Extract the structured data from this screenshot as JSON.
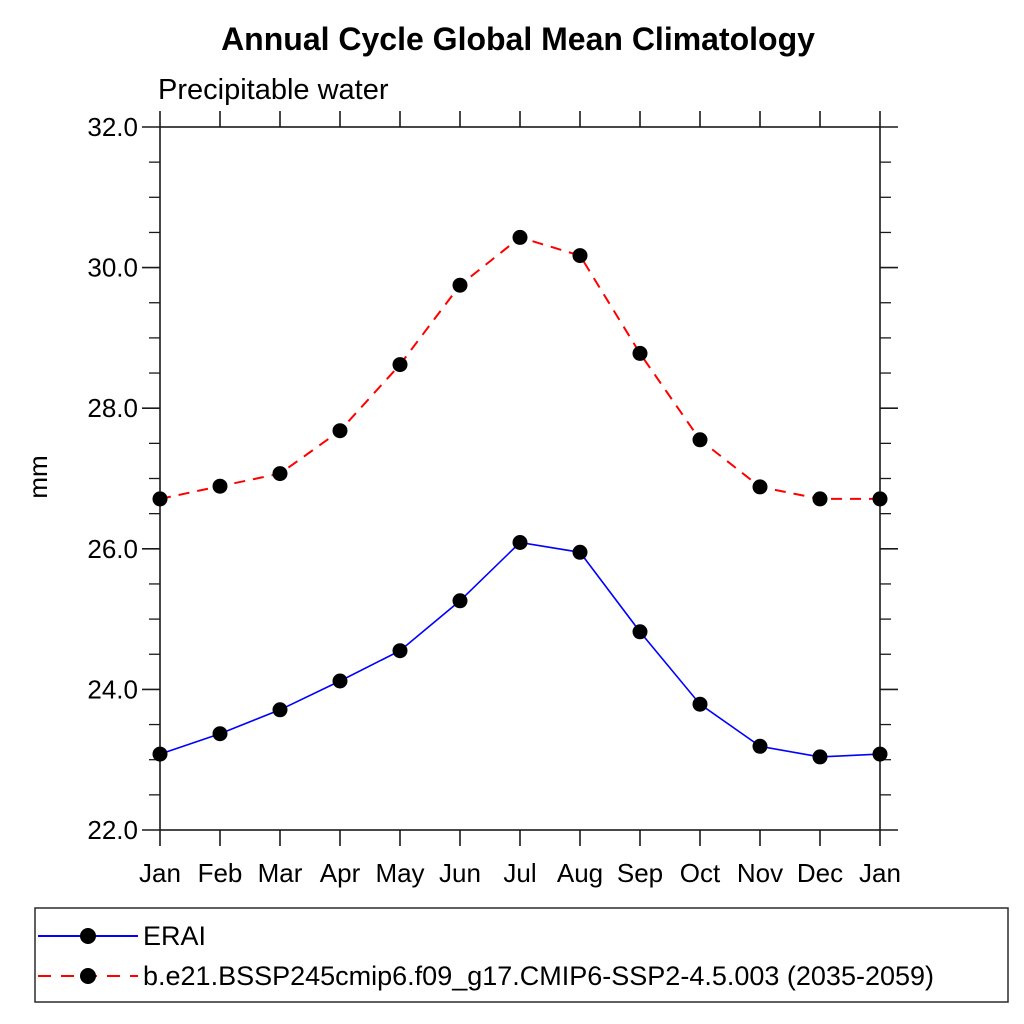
{
  "chart_data": {
    "type": "line",
    "title": "Annual Cycle Global Mean Climatology",
    "subtitle": "Precipitable water",
    "ylabel": "mm",
    "xlabel": "",
    "categories": [
      "Jan",
      "Feb",
      "Mar",
      "Apr",
      "May",
      "Jun",
      "Jul",
      "Aug",
      "Sep",
      "Oct",
      "Nov",
      "Dec",
      "Jan"
    ],
    "ylim": [
      22.0,
      32.0
    ],
    "ytick_values": [
      22.0,
      24.0,
      26.0,
      28.0,
      30.0,
      32.0
    ],
    "ytick_labels": [
      "22.0",
      "24.0",
      "26.0",
      "28.0",
      "30.0",
      "32.0"
    ],
    "y_minor_step": 0.5,
    "grid": false,
    "frame_color": "#1a1a1a",
    "marker_color": "#000000",
    "legend_position": "bottom-left-box",
    "series": [
      {
        "name": "ERAI",
        "color": "#0000ff",
        "line_style": "solid",
        "marker": "filled-circle",
        "values": [
          23.08,
          23.37,
          23.71,
          24.12,
          24.55,
          25.26,
          26.09,
          25.95,
          24.82,
          23.79,
          23.19,
          23.04,
          23.08
        ]
      },
      {
        "name": "b.e21.BSSP245cmip6.f09_g17.CMIP6-SSP2-4.5.003 (2035-2059)",
        "color": "#ff0000",
        "line_style": "dashed",
        "marker": "filled-circle",
        "values": [
          26.71,
          26.89,
          27.07,
          27.68,
          28.62,
          29.75,
          30.43,
          30.17,
          28.78,
          27.55,
          26.88,
          26.71,
          26.71
        ]
      }
    ]
  }
}
